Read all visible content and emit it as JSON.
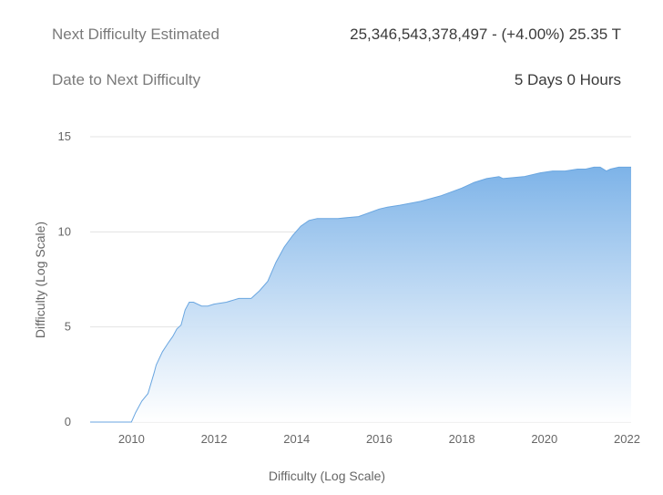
{
  "stats": {
    "next_difficulty_label": "Next Difficulty Estimated",
    "next_difficulty_value": "25,346,543,378,497 - (+4.00%) 25.35 T",
    "date_label": "Date to Next Difficulty",
    "date_value": "5 Days 0 Hours"
  },
  "chart_data": {
    "type": "area",
    "xlabel": "Difficulty (Log Scale)",
    "ylabel": "Difficulty (Log Scale)",
    "xlim": [
      2009.0,
      2022.1
    ],
    "ylim": [
      0,
      15
    ],
    "grid": true,
    "x_ticks": [
      2010,
      2012,
      2014,
      2016,
      2018,
      2020,
      2022
    ],
    "y_ticks": [
      0,
      5,
      10,
      15
    ],
    "colors": {
      "fill_top": "#7db3e8",
      "fill_bottom": "#ffffff",
      "line": "#6aa6e0",
      "grid": "#e3e3e3"
    },
    "series": [
      {
        "x": [
          2009.0,
          2010.0,
          2010.1,
          2010.25,
          2010.4,
          2010.55,
          2010.6,
          2010.75,
          2010.9,
          2011.0,
          2011.1,
          2011.2,
          2011.3,
          2011.4,
          2011.5,
          2011.7,
          2011.85,
          2012.0,
          2012.3,
          2012.6,
          2012.9,
          2013.1,
          2013.3,
          2013.5,
          2013.7,
          2013.9,
          2014.1,
          2014.3,
          2014.5,
          2014.7,
          2015.0,
          2015.5,
          2016.0,
          2016.2,
          2016.5,
          2017.0,
          2017.5,
          2018.0,
          2018.3,
          2018.6,
          2018.9,
          2019.0,
          2019.5,
          2019.9,
          2020.2,
          2020.5,
          2020.8,
          2021.0,
          2021.2,
          2021.35,
          2021.5,
          2021.6,
          2021.8,
          2022.1
        ],
        "y": [
          0,
          0,
          0.5,
          1.1,
          1.5,
          2.6,
          3.0,
          3.7,
          4.2,
          4.5,
          4.9,
          5.1,
          5.9,
          6.3,
          6.3,
          6.1,
          6.1,
          6.2,
          6.3,
          6.5,
          6.5,
          6.9,
          7.4,
          8.4,
          9.2,
          9.8,
          10.3,
          10.6,
          10.7,
          10.7,
          10.7,
          10.8,
          11.2,
          11.3,
          11.4,
          11.6,
          11.9,
          12.3,
          12.6,
          12.8,
          12.9,
          12.8,
          12.9,
          13.1,
          13.2,
          13.2,
          13.3,
          13.3,
          13.4,
          13.4,
          13.2,
          13.3,
          13.4,
          13.4
        ]
      }
    ]
  }
}
